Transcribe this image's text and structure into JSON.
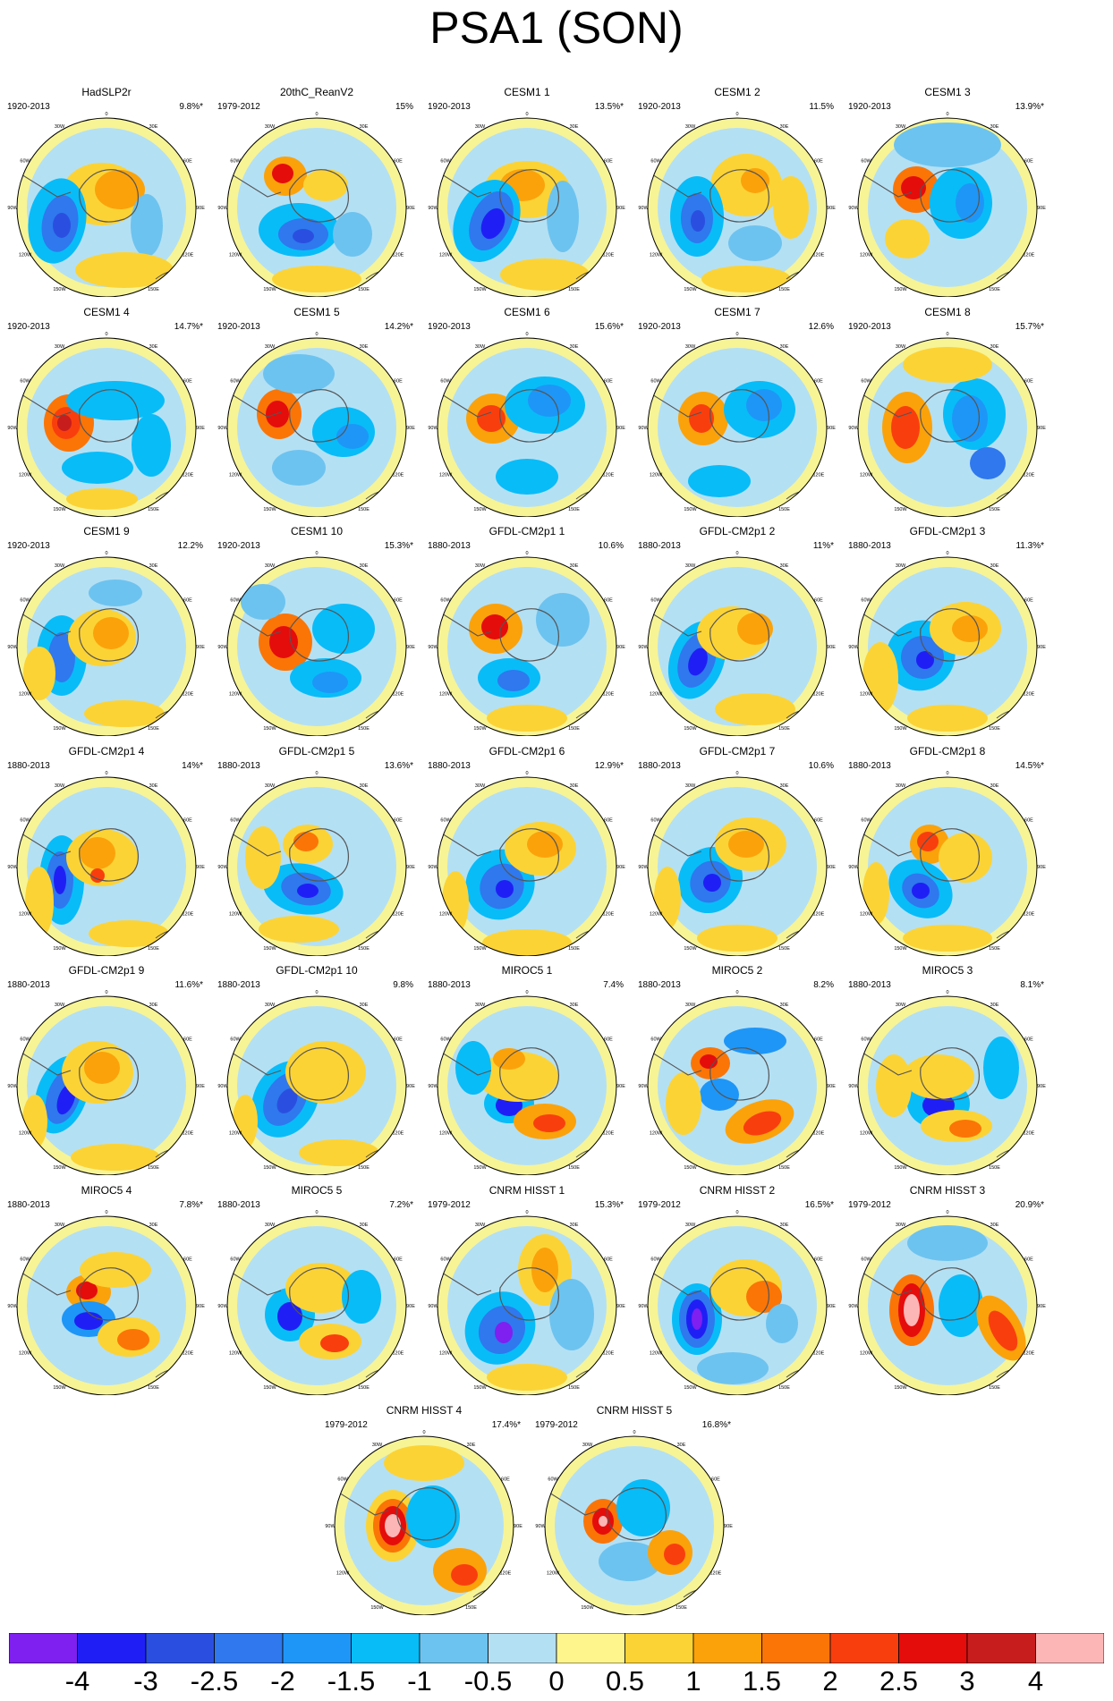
{
  "title": "PSA1 (SON)",
  "longitude_labels": [
    "0",
    "30W",
    "60W",
    "90W",
    "120W",
    "150W",
    "180",
    "150E",
    "120E",
    "90E",
    "60E",
    "30E"
  ],
  "panels": [
    {
      "name": "HadSLP2r",
      "period": "1920-2013",
      "pct": "9.8%*"
    },
    {
      "name": "20thC_ReanV2",
      "period": "1979-2012",
      "pct": "15%"
    },
    {
      "name": "CESM1 1",
      "period": "1920-2013",
      "pct": "13.5%*"
    },
    {
      "name": "CESM1 2",
      "period": "1920-2013",
      "pct": "11.5%"
    },
    {
      "name": "CESM1 3",
      "period": "1920-2013",
      "pct": "13.9%*"
    },
    {
      "name": "CESM1 4",
      "period": "1920-2013",
      "pct": "14.7%*"
    },
    {
      "name": "CESM1 5",
      "period": "1920-2013",
      "pct": "14.2%*"
    },
    {
      "name": "CESM1 6",
      "period": "1920-2013",
      "pct": "15.6%*"
    },
    {
      "name": "CESM1 7",
      "period": "1920-2013",
      "pct": "12.6%"
    },
    {
      "name": "CESM1 8",
      "period": "1920-2013",
      "pct": "15.7%*"
    },
    {
      "name": "CESM1 9",
      "period": "1920-2013",
      "pct": "12.2%"
    },
    {
      "name": "CESM1 10",
      "period": "1920-2013",
      "pct": "15.3%*"
    },
    {
      "name": "GFDL-CM2p1 1",
      "period": "1880-2013",
      "pct": "10.6%"
    },
    {
      "name": "GFDL-CM2p1 2",
      "period": "1880-2013",
      "pct": "11%*"
    },
    {
      "name": "GFDL-CM2p1 3",
      "period": "1880-2013",
      "pct": "11.3%*"
    },
    {
      "name": "GFDL-CM2p1 4",
      "period": "1880-2013",
      "pct": "14%*"
    },
    {
      "name": "GFDL-CM2p1 5",
      "period": "1880-2013",
      "pct": "13.6%*"
    },
    {
      "name": "GFDL-CM2p1 6",
      "period": "1880-2013",
      "pct": "12.9%*"
    },
    {
      "name": "GFDL-CM2p1 7",
      "period": "1880-2013",
      "pct": "10.6%"
    },
    {
      "name": "GFDL-CM2p1 8",
      "period": "1880-2013",
      "pct": "14.5%*"
    },
    {
      "name": "GFDL-CM2p1 9",
      "period": "1880-2013",
      "pct": "11.6%*"
    },
    {
      "name": "GFDL-CM2p1 10",
      "period": "1880-2013",
      "pct": "9.8%"
    },
    {
      "name": "MIROC5 1",
      "period": "1880-2013",
      "pct": "7.4%"
    },
    {
      "name": "MIROC5 2",
      "period": "1880-2013",
      "pct": "8.2%"
    },
    {
      "name": "MIROC5 3",
      "period": "1880-2013",
      "pct": "8.1%*"
    },
    {
      "name": "MIROC5 4",
      "period": "1880-2013",
      "pct": "7.8%*"
    },
    {
      "name": "MIROC5 5",
      "period": "1880-2013",
      "pct": "7.2%*"
    },
    {
      "name": "CNRM HISST 1",
      "period": "1979-2012",
      "pct": "15.3%*"
    },
    {
      "name": "CNRM HISST 2",
      "period": "1979-2012",
      "pct": "16.5%*"
    },
    {
      "name": "CNRM HISST 3",
      "period": "1979-2012",
      "pct": "20.9%*"
    },
    {
      "name": "CNRM HISST 4",
      "period": "1979-2012",
      "pct": "17.4%*"
    },
    {
      "name": "CNRM HISST 5",
      "period": "1979-2012",
      "pct": "16.8%*"
    }
  ],
  "colorbar": {
    "labels": [
      "-4",
      "-3",
      "-2.5",
      "-2",
      "-1.5",
      "-1",
      "-0.5",
      "0",
      "0.5",
      "1",
      "1.5",
      "2",
      "2.5",
      "3",
      "4"
    ],
    "colors": [
      "#7f1ff0",
      "#1f1ff5",
      "#2a4fe0",
      "#2f78ee",
      "#1e96f7",
      "#08bcf8",
      "#6dc3ef",
      "#b4e0f4",
      "#fef68c",
      "#fcd335",
      "#fba20a",
      "#fb7506",
      "#f93e0e",
      "#e50c0c",
      "#c81d1d",
      "#fdb6b6"
    ]
  }
}
